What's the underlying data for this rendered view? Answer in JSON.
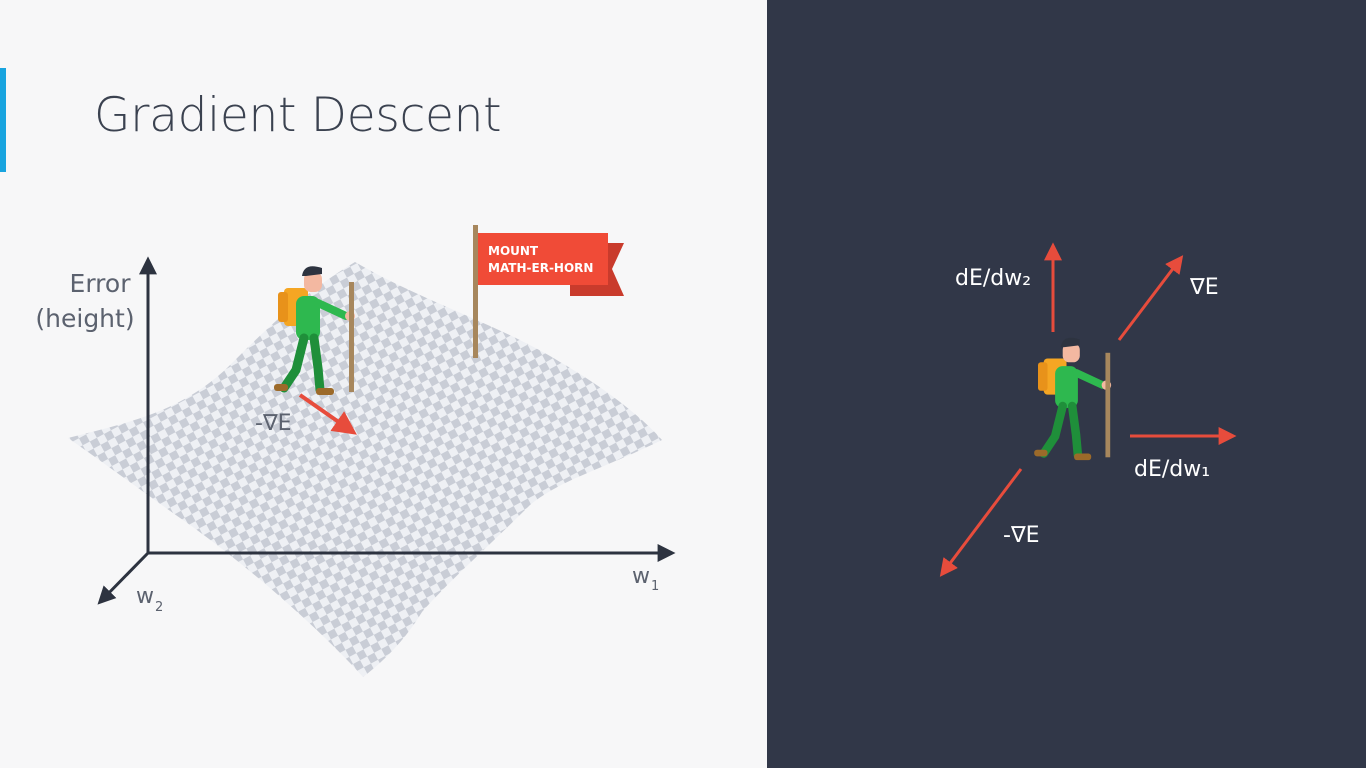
{
  "slide": {
    "title": "Gradient Descent",
    "accent_color": "#18a4df"
  },
  "left_diagram": {
    "y_axis_label_line1": "Error",
    "y_axis_label_line2": "(height)",
    "x_axis_label": "w",
    "x_axis_subscript": "1",
    "z_axis_label": "w",
    "z_axis_subscript": "2",
    "flag_line1": "MOUNT",
    "flag_line2": "MATH-ER-HORN",
    "neg_gradient_label": "-∇E"
  },
  "right_diagram": {
    "de_dw2_label": "dE/dw₂",
    "gradient_label": "∇E",
    "de_dw1_label": "dE/dw₁",
    "neg_gradient_label": "-∇E"
  },
  "colors": {
    "arrow_red": "#e74c3c",
    "flag_red": "#f04b37",
    "axis_dark": "#2d3340",
    "hiker_green": "#2eb84f",
    "backpack_orange": "#f5a623",
    "right_background": "#313748"
  }
}
